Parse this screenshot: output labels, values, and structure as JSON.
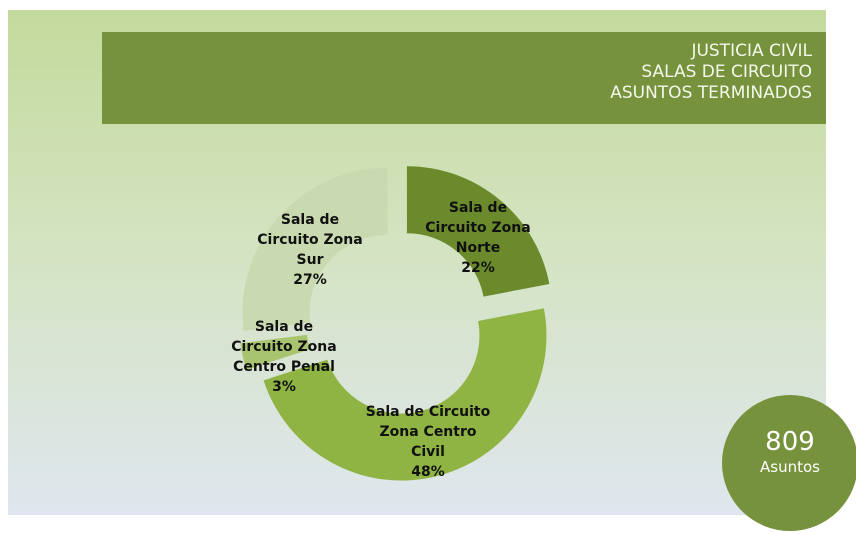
{
  "chart_data": {
    "type": "donut",
    "title": [
      "JUSTICIA CIVIL",
      "SALAS DE CIRCUITO",
      "ASUNTOS TERMINADOS"
    ],
    "categories": [
      "Sala de Circuito Zona Norte",
      "Sala de Circuito Zona Centro Civil",
      "Sala de Circuito Zona Centro Penal",
      "Sala de Circuito Zona Sur"
    ],
    "values": [
      22,
      48,
      3,
      27
    ],
    "value_labels": [
      "22%",
      "48%",
      "3%",
      "27%"
    ],
    "colors": [
      "#6a8a2c",
      "#8fb443",
      "#a9c46e",
      "#c9d9b0"
    ],
    "total": "809",
    "total_label": "Asuntos"
  }
}
